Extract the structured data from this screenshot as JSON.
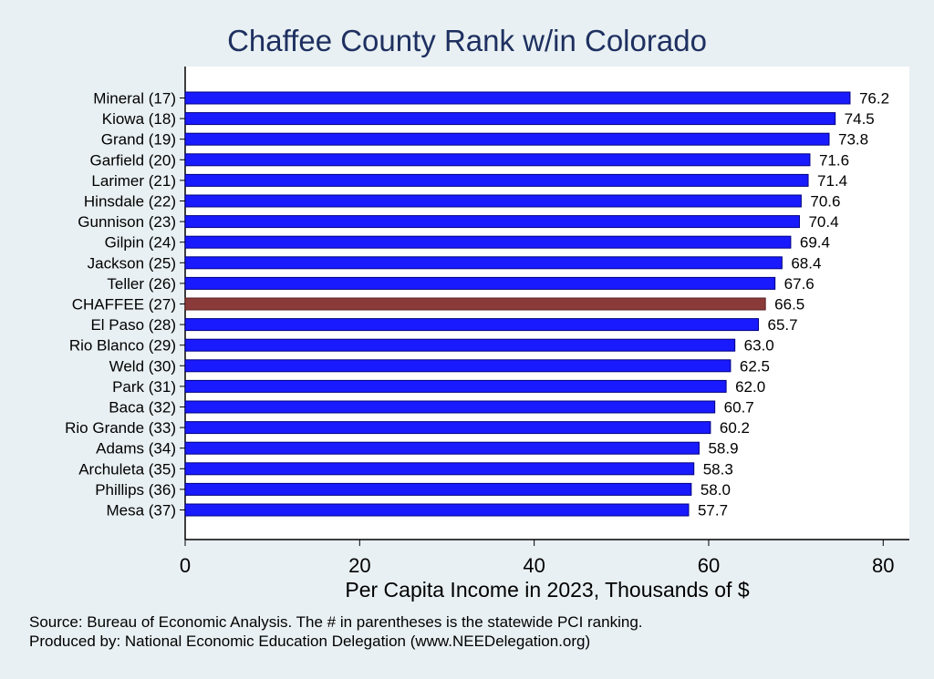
{
  "chart_data": {
    "type": "bar",
    "orientation": "horizontal",
    "title": "Chaffee County Rank w/in Colorado",
    "xlabel": "Per Capita Income in 2023, Thousands of $",
    "xlim": [
      0,
      83
    ],
    "xticks": [
      0,
      20,
      40,
      60,
      80
    ],
    "grid": false,
    "bar_color": "#1a1aff",
    "highlight_color": "#8b3a3a",
    "highlight_category": "CHAFFEE (27)",
    "categories": [
      "Mineral (17)",
      "Kiowa (18)",
      "Grand (19)",
      "Garfield (20)",
      "Larimer (21)",
      "Hinsdale (22)",
      "Gunnison (23)",
      "Gilpin (24)",
      "Jackson (25)",
      "Teller (26)",
      "CHAFFEE (27)",
      "El Paso (28)",
      "Rio Blanco (29)",
      "Weld (30)",
      "Park (31)",
      "Baca (32)",
      "Rio Grande (33)",
      "Adams (34)",
      "Archuleta (35)",
      "Phillips (36)",
      "Mesa (37)"
    ],
    "values": [
      76.2,
      74.5,
      73.8,
      71.6,
      71.4,
      70.6,
      70.4,
      69.4,
      68.4,
      67.6,
      66.5,
      65.7,
      63.0,
      62.5,
      62.0,
      60.7,
      60.2,
      58.9,
      58.3,
      58.0,
      57.7
    ],
    "value_labels": [
      "76.2",
      "74.5",
      "73.8",
      "71.6",
      "71.4",
      "70.6",
      "70.4",
      "69.4",
      "68.4",
      "67.6",
      "66.5",
      "65.7",
      "63.0",
      "62.5",
      "62.0",
      "60.7",
      "60.2",
      "58.9",
      "58.3",
      "58.0",
      "57.7"
    ]
  },
  "footnote": {
    "source": "Source: Bureau of Economic Analysis. The # in parentheses is the statewide PCI ranking.",
    "producer": "Produced by: National Economic Education Delegation (www.NEEDelegation.org)"
  }
}
